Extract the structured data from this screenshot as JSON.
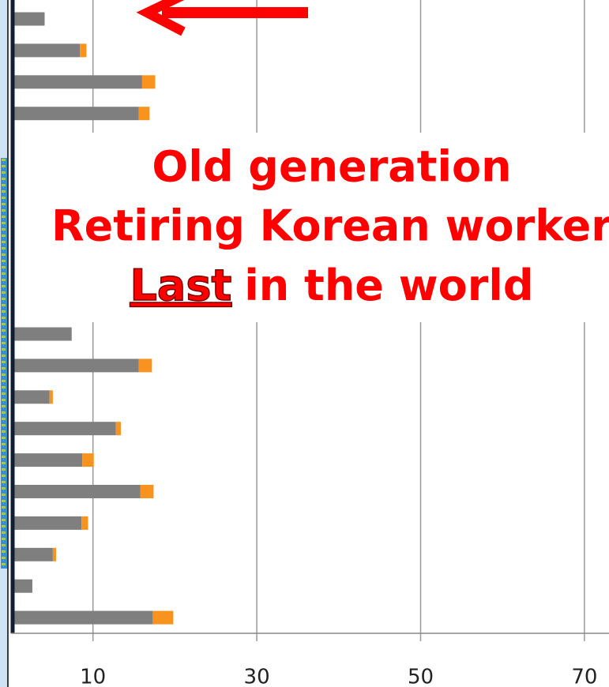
{
  "chart_data": {
    "type": "bar",
    "orientation": "horizontal",
    "stacked": true,
    "categories": [
      null,
      null,
      null,
      null,
      null,
      null,
      null,
      null,
      null,
      null,
      null,
      null,
      null,
      null,
      null,
      null,
      null,
      null,
      null,
      null
    ],
    "series": [
      {
        "color": "#7f7f7f",
        "values": [
          4.1,
          8.4,
          16.0,
          15.6,
          null,
          null,
          null,
          null,
          null,
          null,
          7.4,
          15.6,
          4.7,
          12.8,
          8.7,
          15.8,
          8.6,
          5.1,
          2.6,
          17.3
        ]
      },
      {
        "color": "#f7931e",
        "values": [
          0,
          0.8,
          1.6,
          1.3,
          null,
          null,
          null,
          null,
          null,
          null,
          0,
          1.6,
          0.4,
          0.6,
          1.4,
          1.6,
          0.8,
          0.4,
          0,
          2.5
        ]
      }
    ],
    "xlim": [
      0,
      73
    ],
    "xticks": [
      10,
      30,
      50,
      70
    ],
    "grid": true,
    "annotations": [
      "Old generation",
      "Retiring Korean worker",
      "Last",
      "in the world"
    ]
  }
}
